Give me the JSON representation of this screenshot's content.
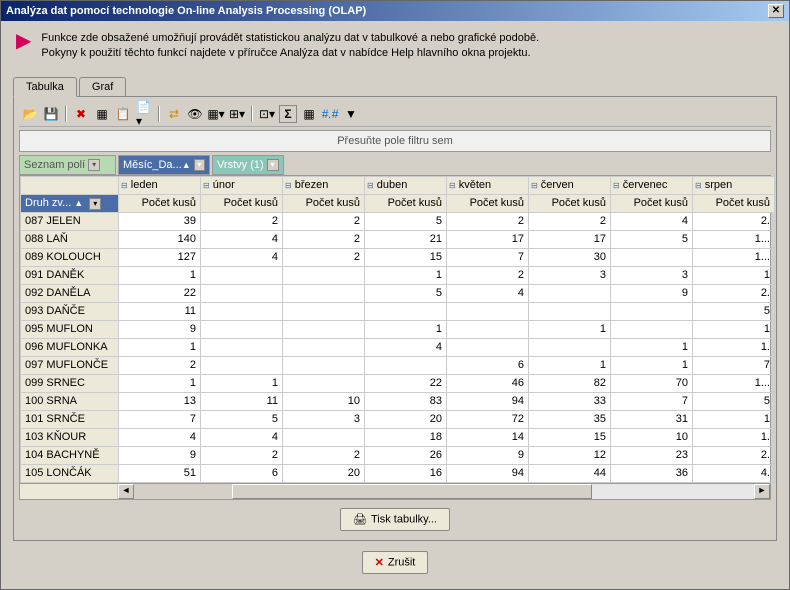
{
  "title": "Analýza dat pomocí technologie On-line Analysis Processing (OLAP)",
  "header": {
    "line1": "Funkce zde obsažené umožňují provádět statistickou analýzu dat v tabulkové a nebo grafické podobě.",
    "line2": "Pokyny k použití těchto funkcí najdete v příručce Analýza dat v nabídce Help hlavního okna projektu."
  },
  "tabs": {
    "tabulka": "Tabulka",
    "graf": "Graf"
  },
  "filter_hint": "Přesuňte pole filtru sem",
  "fields": {
    "seznam": "Seznam polí",
    "mesic": "Měsíc_Da...",
    "vrstvy": "Vrstvy (1)",
    "druh": "Druh zv..."
  },
  "months": [
    "leden",
    "únor",
    "březen",
    "duben",
    "květen",
    "červen",
    "červenec",
    "srpen"
  ],
  "measure_label": "Počet kusů",
  "rows": [
    {
      "id": "087 JELEN",
      "v": [
        "39",
        "2",
        "2",
        "5",
        "2",
        "2",
        "4",
        "2."
      ]
    },
    {
      "id": "088 LAŇ",
      "v": [
        "140",
        "4",
        "2",
        "21",
        "17",
        "17",
        "5",
        "1..."
      ]
    },
    {
      "id": "089 KOLOUCH",
      "v": [
        "127",
        "4",
        "2",
        "15",
        "7",
        "30",
        "",
        "1..."
      ]
    },
    {
      "id": "091 DANĚK",
      "v": [
        "1",
        "",
        "",
        "1",
        "2",
        "3",
        "3",
        "1"
      ]
    },
    {
      "id": "092 DANĚLA",
      "v": [
        "22",
        "",
        "",
        "5",
        "4",
        "",
        "9",
        "2."
      ]
    },
    {
      "id": "093 DAŇČE",
      "v": [
        "11",
        "",
        "",
        "",
        "",
        "",
        "",
        "5"
      ]
    },
    {
      "id": "095 MUFLON",
      "v": [
        "9",
        "",
        "",
        "1",
        "",
        "1",
        "",
        "1"
      ]
    },
    {
      "id": "096 MUFLONKA",
      "v": [
        "1",
        "",
        "",
        "4",
        "",
        "",
        "1",
        "1."
      ]
    },
    {
      "id": "097 MUFLONČE",
      "v": [
        "2",
        "",
        "",
        "",
        "6",
        "1",
        "1",
        "7"
      ]
    },
    {
      "id": "099 SRNEC",
      "v": [
        "1",
        "1",
        "",
        "22",
        "46",
        "82",
        "70",
        "1..."
      ]
    },
    {
      "id": "100 SRNA",
      "v": [
        "13",
        "11",
        "10",
        "83",
        "94",
        "33",
        "7",
        "5"
      ]
    },
    {
      "id": "101 SRNČE",
      "v": [
        "7",
        "5",
        "3",
        "20",
        "72",
        "35",
        "31",
        "1"
      ]
    },
    {
      "id": "103 KŇOUR",
      "v": [
        "4",
        "4",
        "",
        "18",
        "14",
        "15",
        "10",
        "1."
      ]
    },
    {
      "id": "104 BACHYNĚ",
      "v": [
        "9",
        "2",
        "2",
        "26",
        "9",
        "12",
        "23",
        "2."
      ]
    },
    {
      "id": "105 LONČÁK",
      "v": [
        "51",
        "6",
        "20",
        "16",
        "94",
        "44",
        "36",
        "4."
      ]
    }
  ],
  "buttons": {
    "print": "Tisk tabulky...",
    "cancel": "Zrušit"
  },
  "colors": {
    "titlebar_from": "#0a246a",
    "titlebar_to": "#a6caf0",
    "arrow": "#d6005a",
    "field_blue": "#4a6da8",
    "field_green": "#b8dab2",
    "field_teal": "#8bc6b9"
  }
}
